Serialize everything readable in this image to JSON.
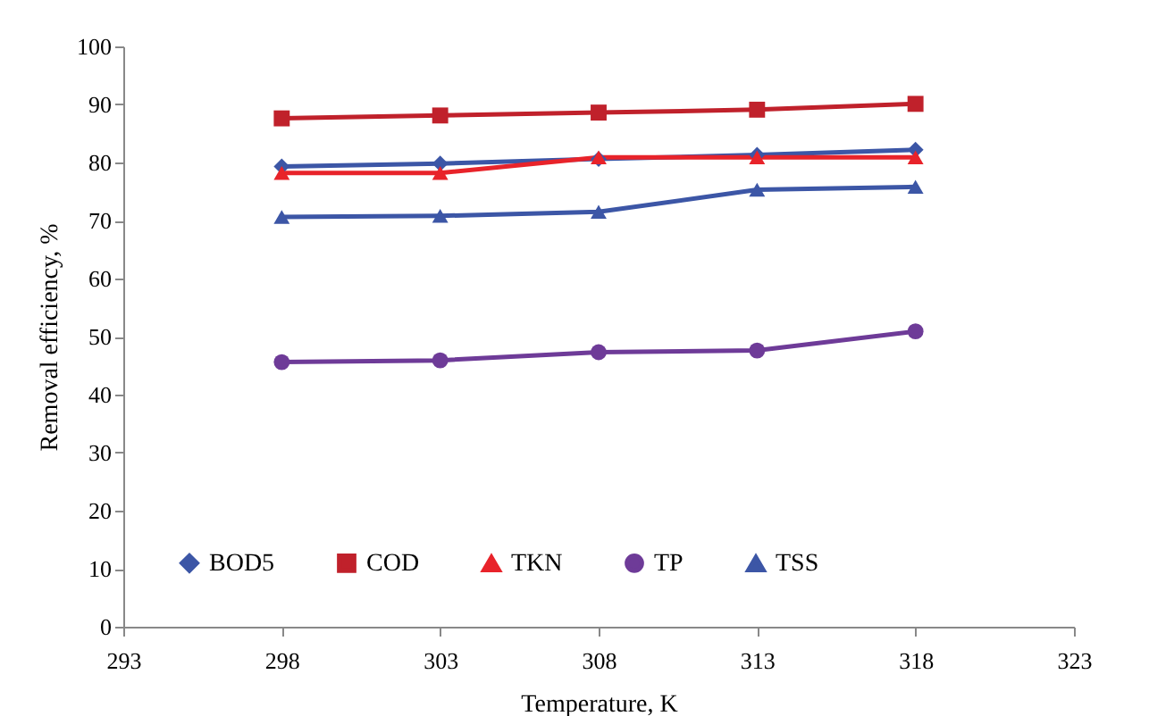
{
  "chart_data": {
    "type": "line",
    "xlabel": "Temperature, K",
    "ylabel": "Removal efficiency, %",
    "x": [
      298,
      303,
      308,
      313,
      318
    ],
    "xlim": [
      293,
      323
    ],
    "xticks": [
      293,
      298,
      303,
      308,
      313,
      318,
      323
    ],
    "ylim": [
      0,
      100
    ],
    "yticks": [
      0,
      10,
      20,
      30,
      40,
      50,
      60,
      70,
      80,
      90,
      100
    ],
    "grid": false,
    "legend": "bottom",
    "line_style": "solid",
    "series": [
      {
        "name": "BOD5",
        "color": "#3c56a6",
        "marker": "diamond",
        "values": [
          79.3,
          79.8,
          80.6,
          81.3,
          82.2
        ]
      },
      {
        "name": "COD",
        "color": "#c0212b",
        "marker": "square",
        "values": [
          87.6,
          88.1,
          88.6,
          89.1,
          90.1
        ]
      },
      {
        "name": "TKN",
        "color": "#e8232a",
        "marker": "triangle",
        "values": [
          78.2,
          78.2,
          80.9,
          80.9,
          80.9
        ]
      },
      {
        "name": "TP",
        "color": "#6e3b98",
        "marker": "circle",
        "values": [
          45.6,
          45.9,
          47.3,
          47.6,
          50.9
        ]
      },
      {
        "name": "TSS",
        "color": "#3c56a6",
        "marker": "triangle",
        "values": [
          70.6,
          70.8,
          71.5,
          75.3,
          75.8
        ]
      }
    ]
  }
}
